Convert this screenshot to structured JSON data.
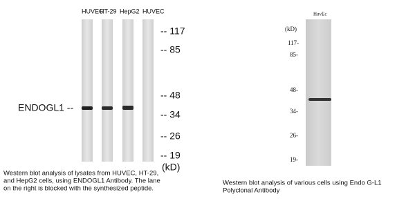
{
  "left_panel": {
    "lane_labels": [
      "HUVEC",
      "HT-29",
      "HepG2",
      "HUVEC"
    ],
    "markers": [
      "-- 117",
      "-- 85",
      "-- 48",
      "-- 34",
      "-- 26",
      "-- 19"
    ],
    "unit": "(kD)",
    "protein_label": "ENDOGL1 --",
    "caption": [
      "Western blot analysis of lysates from HUVEC, HT-29,",
      "and HepG2 cells, using ENDOGL1 Antibody. The lane",
      "on the right is blocked with the synthesized peptide."
    ]
  },
  "right_panel": {
    "lane_label": "HuvEc",
    "unit": "(kD)",
    "markers": [
      "117-",
      "85-",
      "48-",
      "34-",
      "26-",
      "19-"
    ],
    "caption": [
      "Western blot analysis of various cells using Endo G-L1",
      "Polyclonal Antibody"
    ]
  }
}
